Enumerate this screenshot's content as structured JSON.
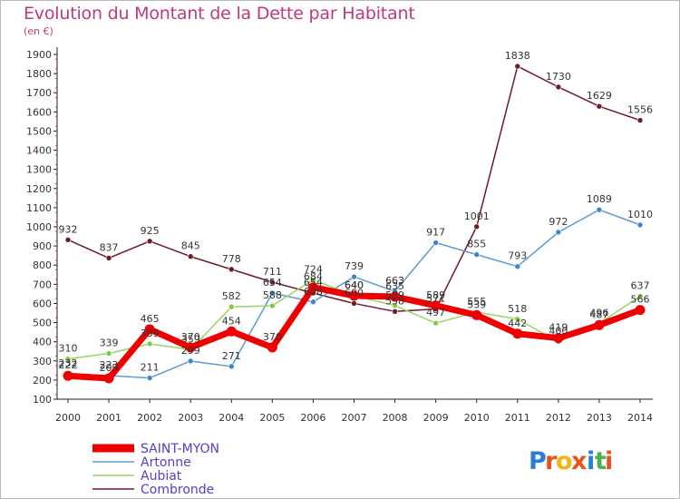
{
  "header": {
    "title": "Evolution du Montant de la Dette par Habitant",
    "unit": "(en €)"
  },
  "logo": {
    "text": "Proxiti",
    "letters": [
      "P",
      "r",
      "o",
      "x",
      "i",
      "t",
      "i"
    ],
    "colors": [
      "#2a7fd4",
      "#e8541c",
      "#f2b418",
      "#e8541c",
      "#2a7fd4",
      "#4caf50",
      "#e8541c"
    ]
  },
  "chart_data": {
    "type": "line",
    "title": "Evolution du Montant de la Dette par Habitant",
    "subtitle": "(en €)",
    "xlabel": "",
    "ylabel": "",
    "categories": [
      "2000",
      "2001",
      "2002",
      "2003",
      "2004",
      "2005",
      "2006",
      "2007",
      "2008",
      "2009",
      "2010",
      "2011",
      "2012",
      "2013",
      "2014"
    ],
    "ylim": [
      100,
      1900
    ],
    "yticks": [
      100,
      200,
      300,
      400,
      500,
      600,
      700,
      800,
      900,
      1000,
      1100,
      1200,
      1300,
      1400,
      1500,
      1600,
      1700,
      1800,
      1900
    ],
    "grid": false,
    "legend_position": "bottom-left",
    "series": [
      {
        "name": "Combronde",
        "color": "#6b1c24",
        "marker": "#6b1c24",
        "values": [
          932,
          837,
          925,
          845,
          778,
          711,
          654,
          600,
          558,
          571,
          1001,
          1838,
          1730,
          1629,
          1556
        ]
      },
      {
        "name": "Artonne",
        "color": "#5a9bd3",
        "marker": "#3d87c8",
        "values": [
          232,
          223,
          211,
          299,
          271,
          654,
          608,
          739,
          663,
          917,
          855,
          793,
          972,
          1089,
          1010
        ]
      },
      {
        "name": "Aubiat",
        "color": "#9ad468",
        "marker": "#7fcc3f",
        "values": [
          310,
          339,
          389,
          359,
          582,
          588,
          724,
          640,
          589,
          497,
          555,
          518,
          400,
          496,
          637
        ]
      },
      {
        "name": "SAINT-MYON",
        "color": "#ee0000",
        "marker": "#ee0000",
        "values": [
          222,
          209,
          465,
          370,
          454,
          370,
          684,
          640,
          635,
          589,
          539,
          442,
          419,
          487,
          566
        ]
      }
    ]
  }
}
